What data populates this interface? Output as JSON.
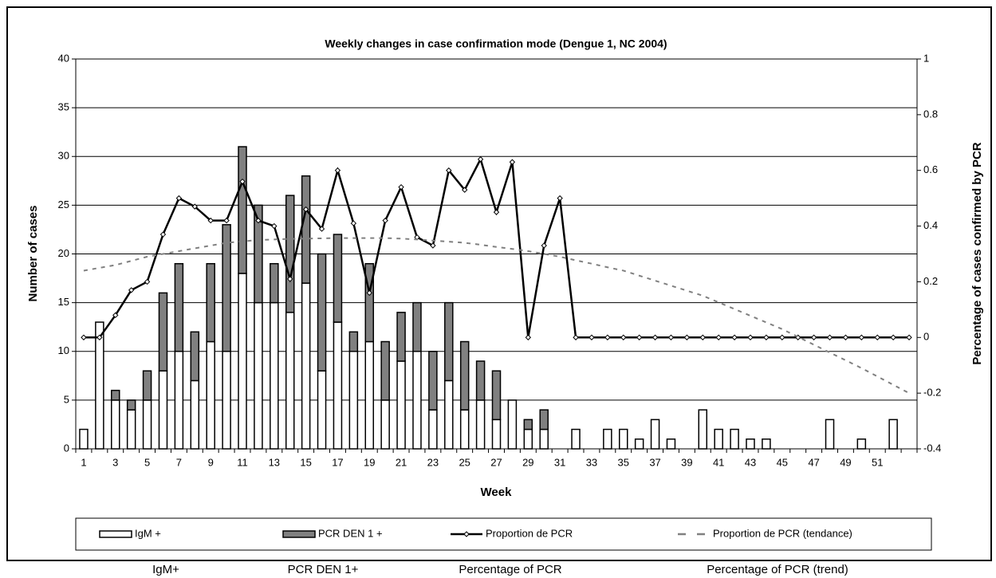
{
  "chart_data": {
    "type": "bar",
    "title": "Weekly changes in case confirmation mode (Dengue 1, NC 2004)",
    "x_label": "Week",
    "y_label": "Number of cases",
    "y2_label": "Percentage of cases confirmed by PCR",
    "categories": [
      1,
      null,
      3,
      null,
      5,
      null,
      7,
      null,
      9,
      null,
      11,
      null,
      13,
      null,
      15,
      null,
      17,
      null,
      19,
      null,
      21,
      null,
      23,
      null,
      25,
      null,
      27,
      null,
      29,
      null,
      31,
      null,
      33,
      null,
      35,
      null,
      37,
      null,
      39,
      null,
      41,
      null,
      43,
      null,
      45,
      null,
      47,
      null,
      49,
      null,
      51,
      null,
      null
    ],
    "stacked": true,
    "series": [
      {
        "name": "IgM +",
        "type": "bar",
        "color": "#ffffff",
        "values": [
          2,
          13,
          5,
          4,
          5,
          8,
          10,
          7,
          11,
          10,
          18,
          15,
          15,
          14,
          17,
          8,
          13,
          10,
          11,
          5,
          9,
          10,
          4,
          7,
          4,
          5,
          3,
          5,
          2,
          2,
          0,
          2,
          0,
          2,
          2,
          1,
          3,
          1,
          0,
          4,
          2,
          2,
          1,
          1,
          0,
          0,
          0,
          3,
          0,
          1,
          0,
          3,
          0
        ]
      },
      {
        "name": "PCR DEN 1 +",
        "type": "bar",
        "color": "#808080",
        "values": [
          0,
          0,
          1,
          1,
          3,
          8,
          9,
          5,
          8,
          13,
          13,
          10,
          4,
          12,
          11,
          12,
          9,
          2,
          8,
          6,
          5,
          5,
          6,
          8,
          7,
          4,
          5,
          0,
          1,
          2,
          0,
          0,
          0,
          0,
          0,
          0,
          0,
          0,
          0,
          0,
          0,
          0,
          0,
          0,
          0,
          0,
          0,
          0,
          0,
          0,
          0,
          0,
          0
        ]
      },
      {
        "name": "Proportion de PCR",
        "type": "line",
        "axis": "y2",
        "color": "#000000",
        "markers": true,
        "values": [
          0,
          0,
          0.08,
          0.17,
          0.2,
          0.37,
          0.5,
          0.47,
          0.42,
          0.42,
          0.56,
          0.42,
          0.4,
          0.21,
          0.46,
          0.39,
          0.6,
          0.41,
          0.16,
          0.42,
          0.54,
          0.36,
          0.33,
          0.6,
          0.53,
          0.64,
          0.45,
          0.63,
          0,
          0.33,
          0.5,
          0,
          0,
          0,
          0,
          0,
          0,
          0,
          0,
          0,
          0,
          0,
          0,
          0,
          0,
          0,
          0,
          0,
          0,
          0,
          0,
          0,
          0
        ]
      },
      {
        "name": "Proportion de PCR (tendance)",
        "type": "line",
        "axis": "y2",
        "color": "#808080",
        "dashed": true,
        "values": [
          0.24,
          0.25,
          0.26,
          0.275,
          0.29,
          0.3,
          0.31,
          0.32,
          0.33,
          0.34,
          0.345,
          0.35,
          0.352,
          0.354,
          0.355,
          0.356,
          0.357,
          0.357,
          0.357,
          0.357,
          0.355,
          0.352,
          0.348,
          0.344,
          0.34,
          0.333,
          0.325,
          0.318,
          0.31,
          0.3,
          0.29,
          0.277,
          0.265,
          0.252,
          0.24,
          0.222,
          0.204,
          0.186,
          0.168,
          0.15,
          0.126,
          0.102,
          0.078,
          0.054,
          0.03,
          0.002,
          -0.026,
          -0.054,
          -0.082,
          -0.11,
          -0.14,
          -0.17,
          -0.2
        ]
      }
    ],
    "ylim": [
      0,
      40
    ],
    "yticks": [
      0,
      5,
      10,
      15,
      20,
      25,
      30,
      35,
      40
    ],
    "y2lim": [
      -0.4,
      1
    ],
    "y2ticks": [
      -0.4,
      -0.2,
      0,
      0.2,
      0.4,
      0.6,
      0.8,
      1
    ],
    "grid": true,
    "legend": "bottom",
    "captions": [
      "IgM+",
      "PCR DEN 1+",
      "Percentage of PCR",
      "Percentage of PCR (trend)"
    ]
  }
}
